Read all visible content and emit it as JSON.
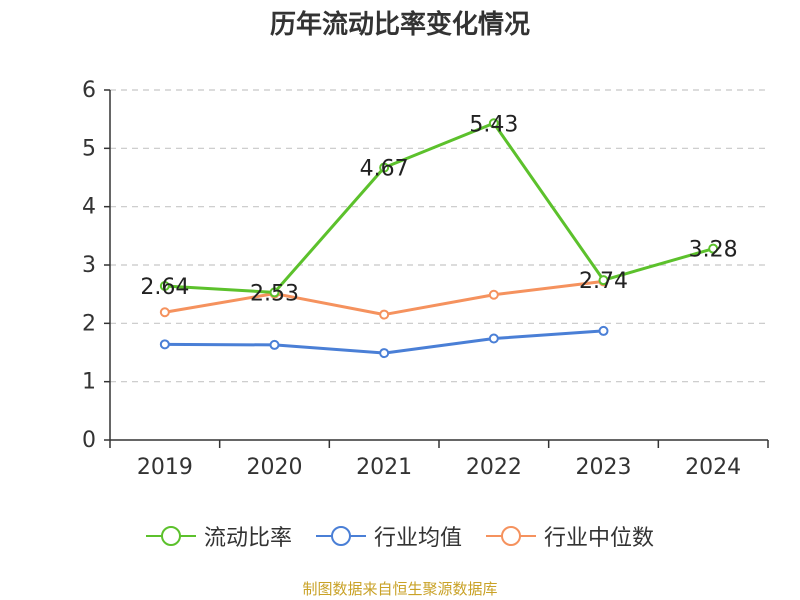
{
  "title": "历年流动比率变化情况",
  "source": "制图数据来自恒生聚源数据库",
  "chart_data": {
    "type": "line",
    "title": "历年流动比率变化情况",
    "categories": [
      "2019",
      "2020",
      "2021",
      "2022",
      "2023",
      "2024"
    ],
    "ylim": [
      0,
      6
    ],
    "yticks": [
      "0",
      "1",
      "2",
      "3",
      "4",
      "5",
      "6"
    ],
    "grid": true,
    "legend_position": "bottom",
    "series": [
      {
        "name": "流动比率",
        "color": "#5cc12c",
        "values": [
          2.64,
          2.53,
          4.67,
          5.43,
          2.74,
          3.28
        ],
        "labels": [
          "2.64",
          "2.53",
          "4.67",
          "5.43",
          "2.74",
          "3.28"
        ]
      },
      {
        "name": "行业均值",
        "color": "#4a7fd6",
        "values": [
          1.64,
          1.63,
          1.49,
          1.74,
          1.87,
          null
        ]
      },
      {
        "name": "行业中位数",
        "color": "#f5925e",
        "values": [
          2.19,
          2.51,
          2.15,
          2.49,
          2.72,
          null
        ]
      }
    ]
  }
}
